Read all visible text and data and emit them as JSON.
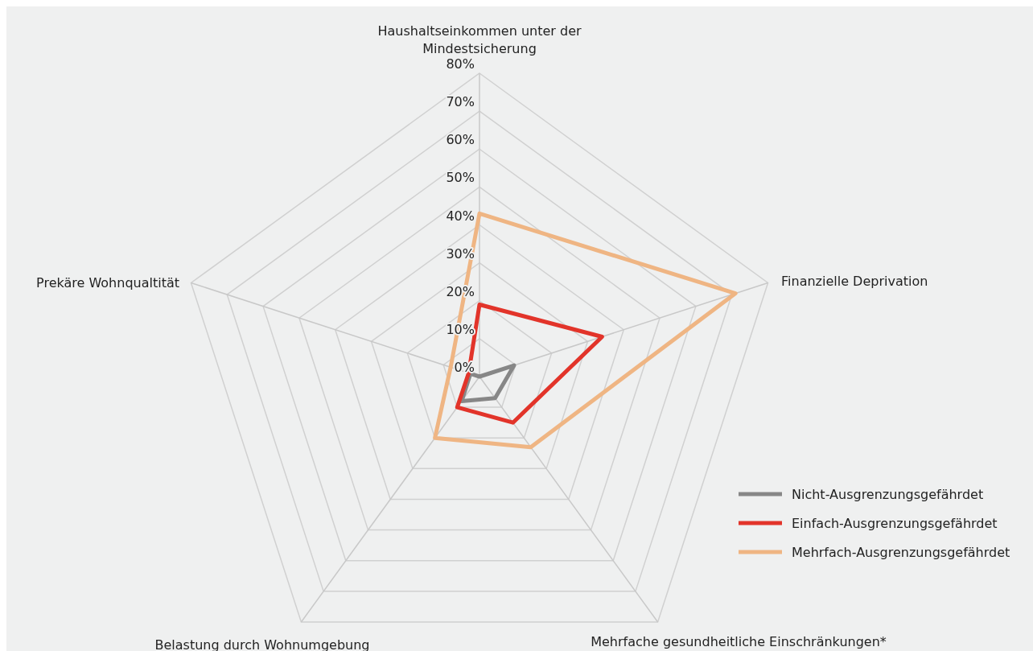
{
  "chart_data": {
    "type": "radar",
    "categories": [
      "Haushaltseinkommen unter der Mindestsicherung",
      "Finanzielle Deprivation",
      "Mehrfache gesundheitliche Einschränkungen*",
      "Belastung durch Wohnumgebung",
      "Prekäre Wohnqualtität"
    ],
    "ylim": [
      0,
      80
    ],
    "yticks": [
      {
        "value": 0,
        "label": "0%"
      },
      {
        "value": 10,
        "label": "10%"
      },
      {
        "value": 20,
        "label": "20%"
      },
      {
        "value": 30,
        "label": "30%"
      },
      {
        "value": 40,
        "label": "40%"
      },
      {
        "value": 50,
        "label": "50%"
      },
      {
        "value": 60,
        "label": "60%"
      },
      {
        "value": 70,
        "label": "70%"
      },
      {
        "value": 80,
        "label": "80%"
      }
    ],
    "grid": true,
    "legend": "bottom right",
    "marker": "none",
    "series": [
      {
        "name": "Nicht-Ausgrenzungsgefährdet",
        "color": "#878787",
        "values": [
          0,
          9.6,
          7,
          8,
          2.5
        ]
      },
      {
        "name": "Einfach-Ausgrenzungsgefährdet",
        "color": "#e2342a",
        "values": [
          19,
          34,
          15,
          10,
          3
        ]
      },
      {
        "name": "Mehrfach-Ausgrenzungsgefährdet",
        "color": "#efb583",
        "values": [
          43,
          71,
          23,
          20,
          8
        ]
      }
    ]
  }
}
